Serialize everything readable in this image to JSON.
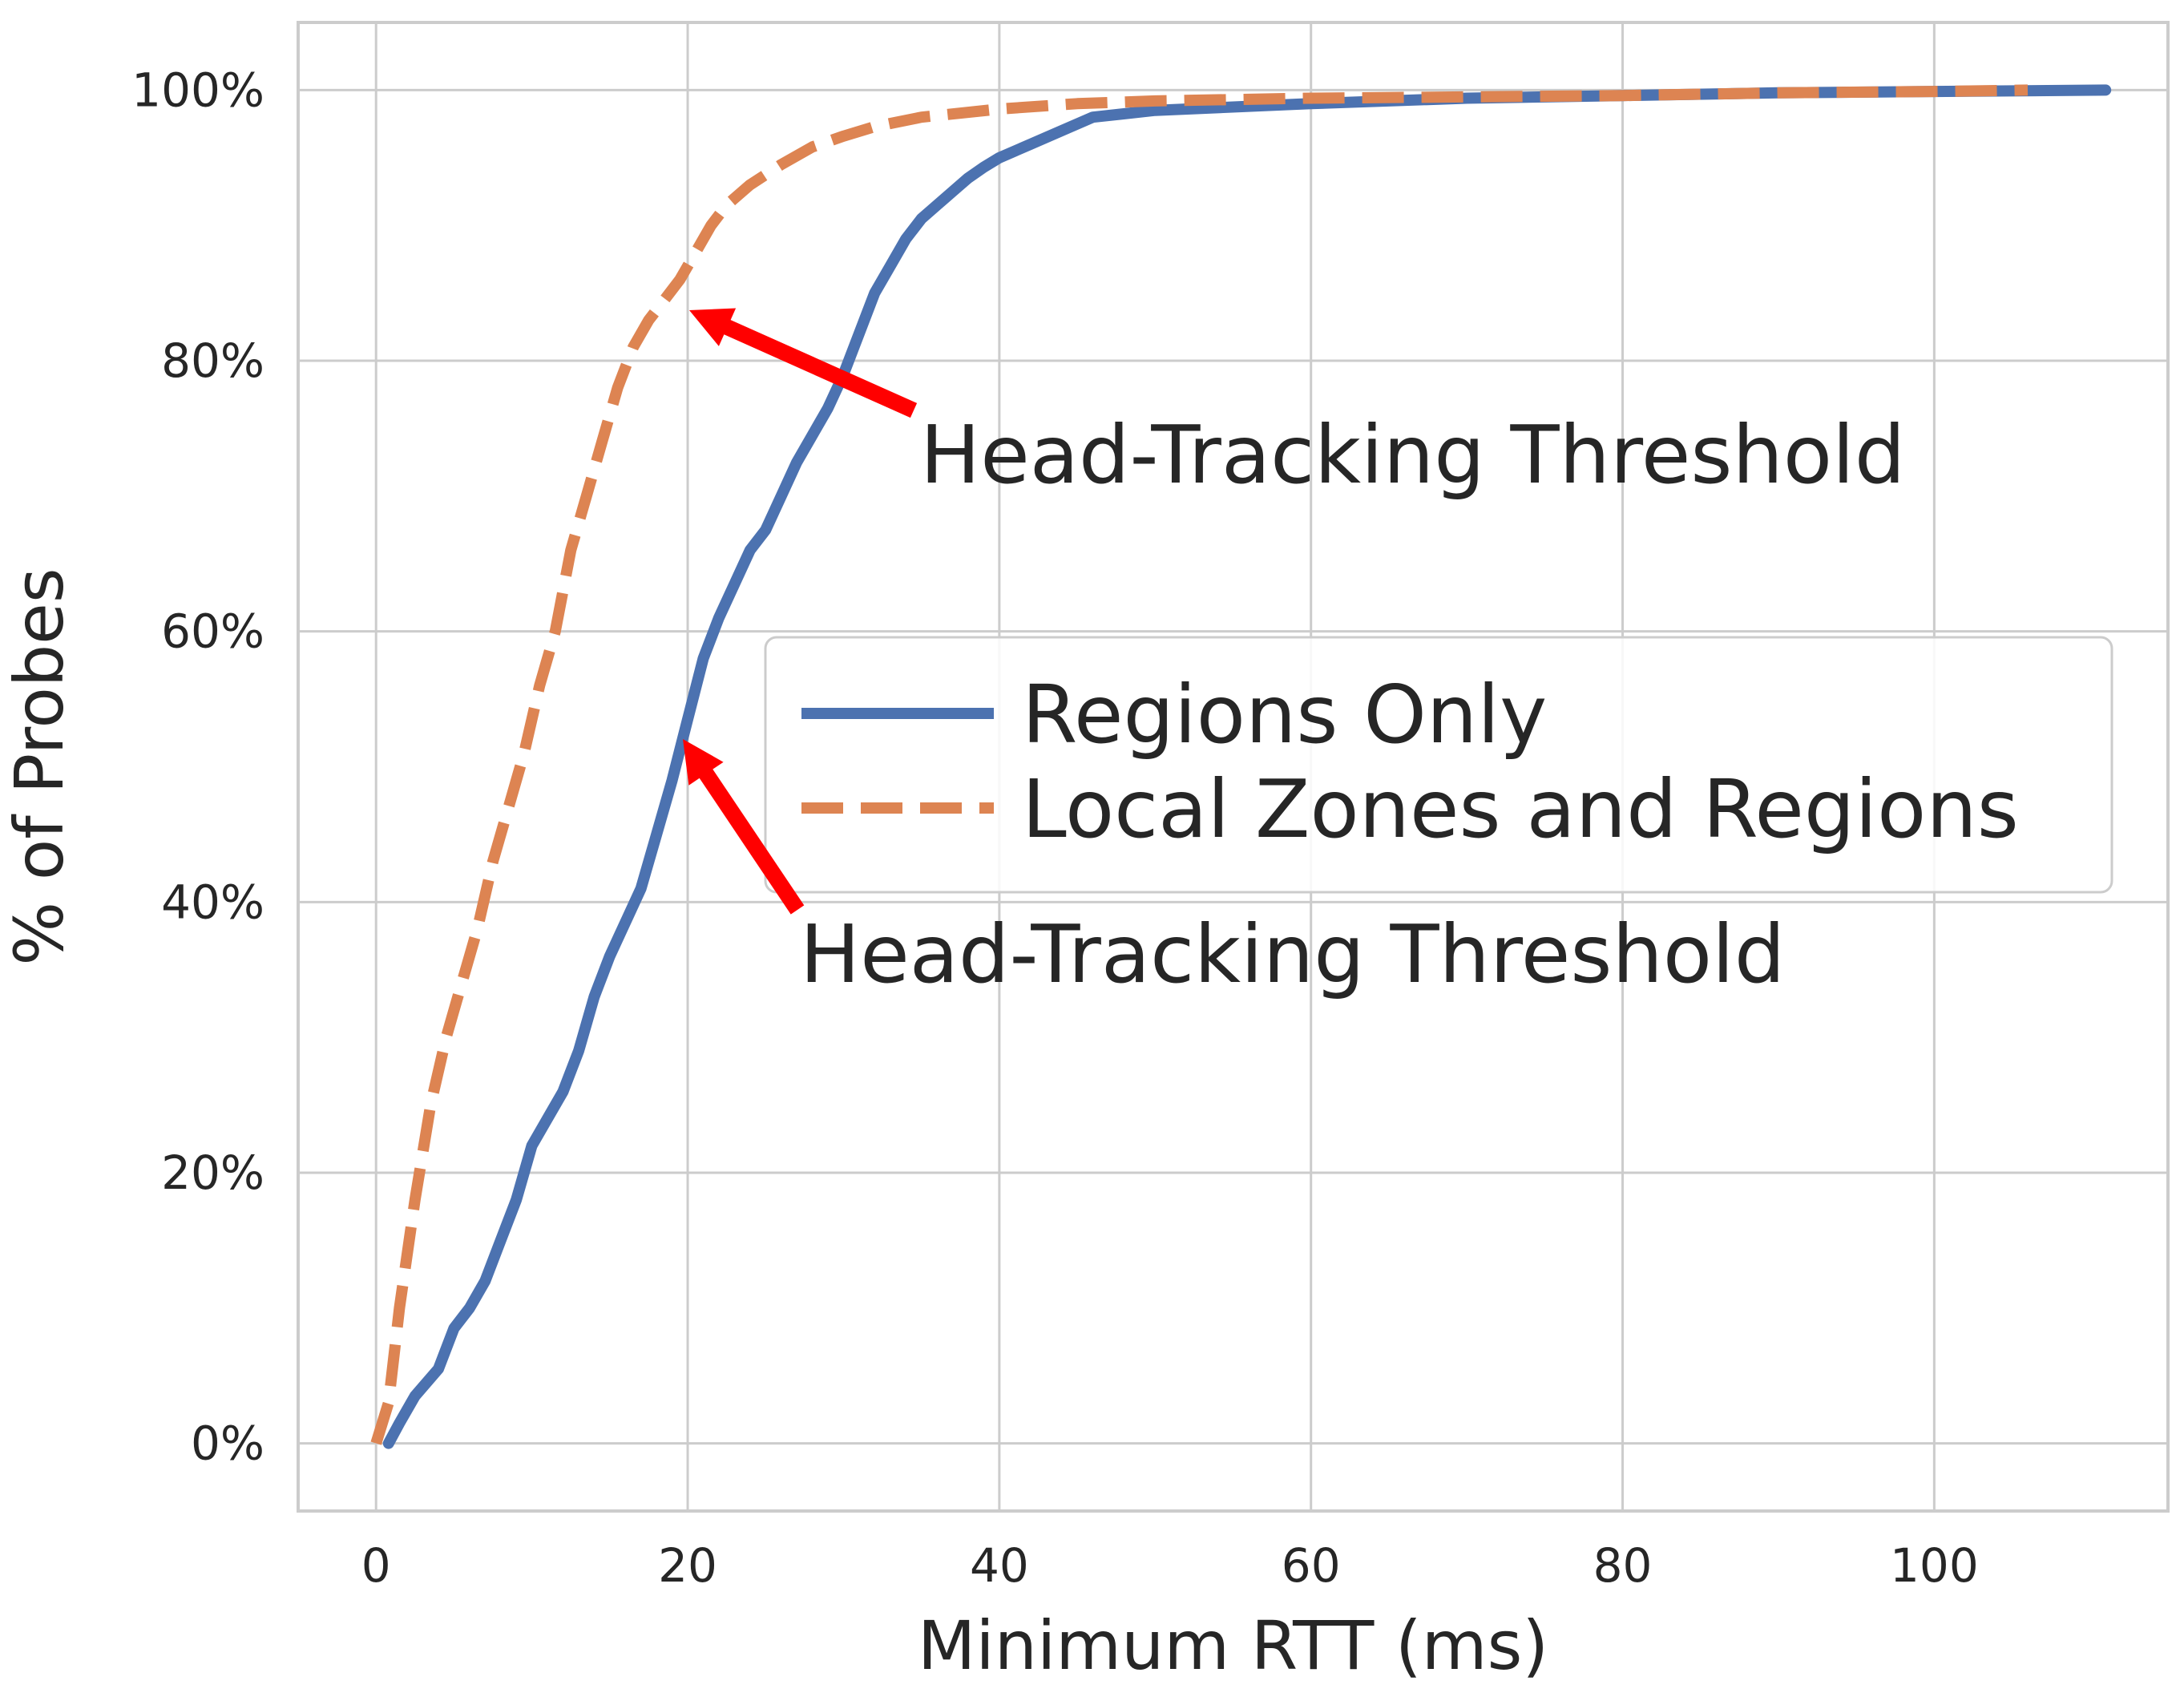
{
  "chart_data": {
    "type": "line",
    "title": "",
    "xlabel": "Minimum RTT (ms)",
    "ylabel": "% of Probes",
    "xlim": [
      -5,
      115
    ],
    "ylim": [
      -5,
      105
    ],
    "x_ticks": [
      0,
      20,
      40,
      60,
      80,
      100
    ],
    "x_tick_labels": [
      "0",
      "20",
      "40",
      "60",
      "80",
      "100"
    ],
    "y_ticks": [
      0,
      20,
      40,
      60,
      80,
      100
    ],
    "y_tick_labels": [
      "0%",
      "20%",
      "40%",
      "60%",
      "80%",
      "100%"
    ],
    "grid": true,
    "legend_position": "center-right",
    "series": [
      {
        "name": "Regions Only",
        "color": "#4c72b0",
        "style": "solid",
        "points": [
          [
            0.8,
            0
          ],
          [
            1.5,
            1.5
          ],
          [
            2.5,
            3.5
          ],
          [
            4,
            5.5
          ],
          [
            5,
            8.5
          ],
          [
            6,
            10
          ],
          [
            7,
            12
          ],
          [
            8,
            15
          ],
          [
            9,
            18
          ],
          [
            10,
            22
          ],
          [
            11,
            24
          ],
          [
            12,
            26
          ],
          [
            13,
            29
          ],
          [
            14,
            33
          ],
          [
            15,
            36
          ],
          [
            16,
            38.5
          ],
          [
            17,
            41
          ],
          [
            18,
            45
          ],
          [
            19,
            49
          ],
          [
            20,
            53.5
          ],
          [
            21,
            58
          ],
          [
            22,
            61
          ],
          [
            23,
            63.5
          ],
          [
            24,
            66
          ],
          [
            25,
            67.5
          ],
          [
            26,
            70
          ],
          [
            27,
            72.5
          ],
          [
            28,
            74.5
          ],
          [
            29,
            76.5
          ],
          [
            30,
            79
          ],
          [
            31,
            82
          ],
          [
            32,
            85
          ],
          [
            33,
            87
          ],
          [
            34,
            89
          ],
          [
            35,
            90.5
          ],
          [
            36,
            91.5
          ],
          [
            37,
            92.5
          ],
          [
            38,
            93.5
          ],
          [
            39,
            94.3
          ],
          [
            40,
            95
          ],
          [
            42,
            96
          ],
          [
            44,
            97
          ],
          [
            46,
            98
          ],
          [
            50,
            98.5
          ],
          [
            60,
            99
          ],
          [
            70,
            99.4
          ],
          [
            80,
            99.6
          ],
          [
            90,
            99.8
          ],
          [
            100,
            99.9
          ],
          [
            111,
            100
          ]
        ]
      },
      {
        "name": "Local Zones and Regions",
        "color": "#dd8452",
        "style": "dashed",
        "points": [
          [
            0,
            0
          ],
          [
            0.8,
            3
          ],
          [
            1.5,
            10
          ],
          [
            2.5,
            18
          ],
          [
            3.5,
            25
          ],
          [
            4.5,
            30
          ],
          [
            5.5,
            34
          ],
          [
            6.5,
            38
          ],
          [
            7.5,
            43
          ],
          [
            8.5,
            47
          ],
          [
            9.5,
            51
          ],
          [
            10.5,
            56
          ],
          [
            11.5,
            60
          ],
          [
            12.5,
            66
          ],
          [
            13.5,
            70
          ],
          [
            14.5,
            74
          ],
          [
            15.5,
            78
          ],
          [
            16.5,
            81
          ],
          [
            17.5,
            83
          ],
          [
            18.5,
            84.5
          ],
          [
            19.5,
            86
          ],
          [
            20.5,
            88
          ],
          [
            21.5,
            90
          ],
          [
            22.5,
            91.5
          ],
          [
            24,
            93
          ],
          [
            26,
            94.5
          ],
          [
            28,
            95.8
          ],
          [
            30,
            96.6
          ],
          [
            32,
            97.3
          ],
          [
            35,
            98
          ],
          [
            40,
            98.6
          ],
          [
            45,
            99
          ],
          [
            50,
            99.2
          ],
          [
            60,
            99.4
          ],
          [
            70,
            99.5
          ],
          [
            80,
            99.6
          ],
          [
            90,
            99.8
          ],
          [
            100,
            99.9
          ],
          [
            106,
            100
          ]
        ]
      }
    ],
    "annotations": [
      {
        "text": "Head-Tracking Threshold",
        "text_pos": [
          35,
          71
        ],
        "arrow_target": [
          20,
          84
        ],
        "color": "#ff0000"
      },
      {
        "text": "Head-Tracking Threshold",
        "text_pos": [
          27.5,
          34
        ],
        "arrow_target": [
          20,
          52
        ],
        "color": "#ff0000"
      }
    ],
    "colors": {
      "grid": "#cccccc",
      "axes_edge": "#cccccc",
      "text": "#262626",
      "annotation_arrow": "#ff0000"
    }
  }
}
